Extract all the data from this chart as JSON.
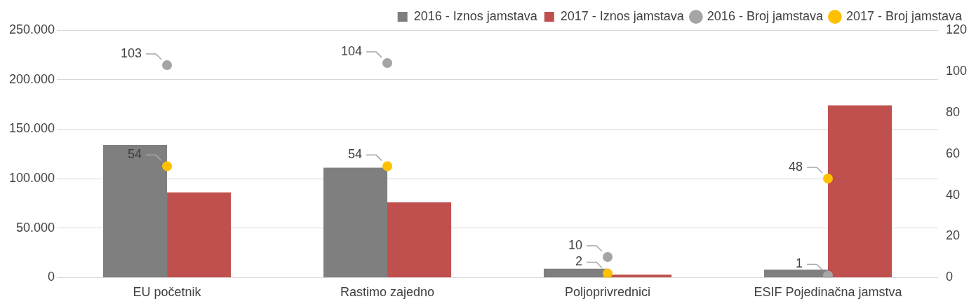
{
  "chart_data": {
    "type": "bar",
    "categories": [
      "EU početnik",
      "Rastimo zajedno",
      "Poljoprivrednici",
      "ESIF Pojedinačna jamstva"
    ],
    "series": [
      {
        "name": "2016 - Iznos jamstava",
        "color": "#7f7f7f",
        "values": [
          134000,
          111000,
          9000,
          8000
        ]
      },
      {
        "name": "2017 - Iznos jamstava",
        "color": "#c0504d",
        "values": [
          86000,
          76000,
          3000,
          174000
        ]
      },
      {
        "name": "2016 - Broj jamstava",
        "type": "scatter",
        "axis": "y2",
        "color": "#a5a5a5",
        "x": [
          "EU početnik",
          "Rastimo zajedno",
          "Poljoprivrednici",
          "ESIF Pojedinačna jamstva"
        ],
        "values": [
          103,
          104,
          10,
          1
        ],
        "value_labels": [
          "103",
          "104",
          "10",
          "1"
        ]
      },
      {
        "name": "2017 - Broj jamstava",
        "type": "scatter",
        "axis": "y2",
        "color": "#ffc000",
        "x": [
          "EU početnik",
          "Rastimo zajedno",
          "Poljoprivrednici",
          "ESIF Pojedinačna jamstva"
        ],
        "values": [
          54,
          54,
          2,
          48
        ],
        "value_labels": [
          "54",
          "54",
          "2",
          "48"
        ]
      }
    ],
    "ylim": [
      0,
      250000
    ],
    "yticks": [
      {
        "value": 0,
        "label": "0"
      },
      {
        "value": 50000,
        "label": "50.000"
      },
      {
        "value": 100000,
        "label": "100.000"
      },
      {
        "value": 150000,
        "label": "150.000"
      },
      {
        "value": 200000,
        "label": "200.000"
      },
      {
        "value": 250000,
        "label": "250.000"
      }
    ],
    "y2lim": [
      0,
      120
    ],
    "y2ticks": [
      0,
      20,
      40,
      60,
      80,
      100,
      120
    ],
    "grid": "y",
    "legend": "top right",
    "marker": "circle"
  }
}
